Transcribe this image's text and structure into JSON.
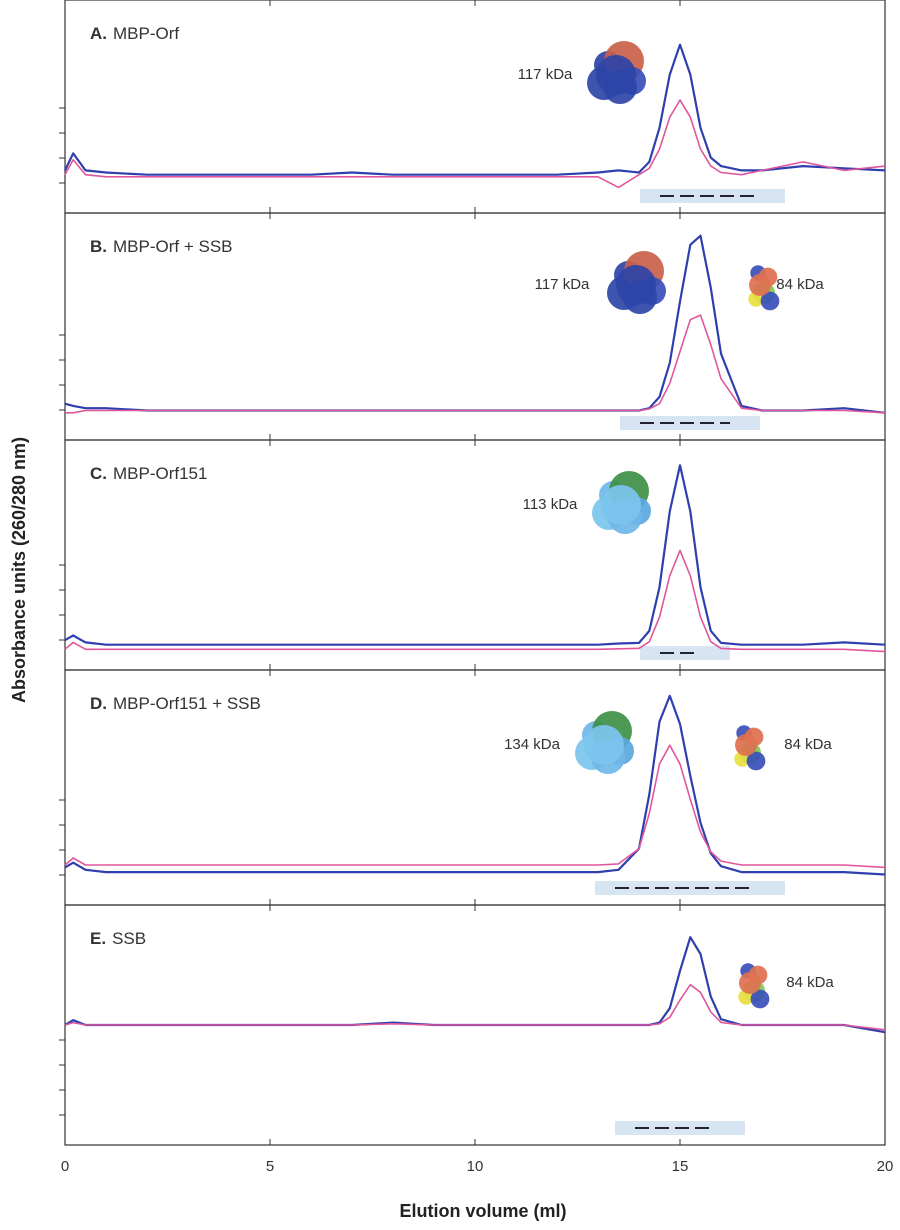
{
  "chart_data": [
    {
      "type": "line",
      "panel_label": "A.",
      "title": "MBP-Orf",
      "annotations": [
        "117 kDa"
      ],
      "x": [
        0,
        0.2,
        0.5,
        1,
        2,
        3,
        4,
        5,
        6,
        7,
        8,
        9,
        10,
        11,
        12,
        13,
        13.5,
        14,
        14.25,
        14.5,
        14.75,
        15,
        15.25,
        15.5,
        15.75,
        16,
        16.5,
        17,
        18,
        19,
        20
      ],
      "xlim": [
        0,
        20
      ],
      "xticks": [
        0,
        5,
        10,
        15,
        20
      ],
      "ylim": [
        0,
        100
      ],
      "series": [
        {
          "color": "#2f3fae",
          "values": [
            20,
            28,
            20,
            19,
            18,
            18,
            18,
            18,
            18,
            19,
            18,
            18,
            18,
            18,
            18,
            19,
            20,
            19,
            24,
            40,
            65,
            79,
            65,
            40,
            26,
            22,
            20,
            20,
            22,
            21,
            20
          ]
        },
        {
          "color": "#e0569c",
          "values": [
            18,
            25,
            18,
            17,
            17,
            17,
            17,
            17,
            17,
            17,
            17,
            17,
            17,
            17,
            17,
            17,
            12,
            18,
            21,
            30,
            45,
            53,
            45,
            30,
            22,
            19,
            18,
            20,
            24,
            20,
            22
          ]
        }
      ]
    },
    {
      "type": "line",
      "panel_label": "B.",
      "title": "MBP-Orf + SSB",
      "annotations": [
        "117 kDa",
        "84 kDa"
      ],
      "ylabel": "Absorbance units (260/280 nm)",
      "x": [
        0,
        0.2,
        0.5,
        1,
        2,
        3,
        4,
        5,
        6,
        7,
        8,
        9,
        10,
        11,
        12,
        13,
        13.5,
        14,
        14.25,
        14.5,
        14.75,
        15,
        15.25,
        15.5,
        15.75,
        16,
        16.5,
        17,
        18,
        19,
        20
      ],
      "xlim": [
        0,
        20
      ],
      "xticks": [
        0,
        5,
        10,
        15,
        20
      ],
      "ylim": [
        0,
        100
      ],
      "series": [
        {
          "color": "#2f3fae",
          "values": [
            16,
            15,
            14,
            14,
            13,
            13,
            13,
            13,
            13,
            13,
            13,
            13,
            13,
            13,
            13,
            13,
            13,
            13,
            14,
            19,
            34,
            61,
            86,
            90,
            67,
            38,
            15,
            13,
            13,
            14,
            12
          ]
        },
        {
          "color": "#e0569c",
          "values": [
            12,
            12,
            13,
            13,
            13,
            13,
            13,
            13,
            13,
            13,
            13,
            13,
            13,
            13,
            13,
            13,
            13,
            13,
            13.7,
            16,
            25,
            39,
            53,
            55,
            42,
            27,
            14,
            13,
            13,
            13,
            12
          ]
        }
      ]
    },
    {
      "type": "line",
      "panel_label": "C.",
      "title": "MBP-Orf151",
      "annotations": [
        "113 kDa"
      ],
      "x": [
        0,
        0.2,
        0.5,
        1,
        2,
        3,
        4,
        5,
        6,
        7,
        8,
        9,
        10,
        11,
        12,
        13,
        13.5,
        14,
        14.25,
        14.5,
        14.75,
        15,
        15.25,
        15.5,
        15.75,
        16,
        16.5,
        17,
        18,
        19,
        20
      ],
      "xlim": [
        0,
        20
      ],
      "xticks": [
        0,
        5,
        10,
        15,
        20
      ],
      "ylim": [
        0,
        100
      ],
      "series": [
        {
          "color": "#2f3fae",
          "values": [
            13,
            15,
            12,
            11,
            11,
            11,
            11,
            11,
            11,
            11,
            11,
            11,
            11,
            11,
            11,
            11,
            11.5,
            11.8,
            17,
            36,
            69,
            89,
            69,
            36,
            17,
            11.8,
            11,
            11,
            11,
            12,
            11
          ]
        },
        {
          "color": "#e0569c",
          "values": [
            9,
            12,
            9,
            9,
            9,
            9,
            9,
            9,
            9,
            9,
            9,
            9,
            9,
            9,
            9,
            9,
            9.2,
            9.4,
            12.3,
            23,
            41,
            52,
            41,
            23,
            12.3,
            9.4,
            9,
            9,
            9,
            9,
            8
          ]
        }
      ]
    },
    {
      "type": "line",
      "panel_label": "D.",
      "title": "MBP-Orf151 + SSB",
      "annotations": [
        "134 kDa",
        "84 kDa"
      ],
      "x": [
        0,
        0.2,
        0.5,
        1,
        2,
        3,
        4,
        5,
        6,
        7,
        8,
        9,
        10,
        11,
        12,
        13,
        13.5,
        14,
        14.25,
        14.5,
        14.75,
        15,
        15.25,
        15.5,
        15.75,
        16,
        16.5,
        17,
        18,
        19,
        20
      ],
      "xlim": [
        0,
        20
      ],
      "xticks": [
        0,
        5,
        10,
        15,
        20
      ],
      "ylim": [
        0,
        100
      ],
      "series": [
        {
          "color": "#2f3fae",
          "values": [
            16,
            18,
            15,
            14,
            14,
            14,
            14,
            14,
            14,
            14,
            14,
            14,
            14,
            14,
            14,
            14,
            15,
            24,
            47,
            78,
            89,
            77,
            55,
            35,
            22,
            16.5,
            14,
            14,
            14,
            14,
            13
          ]
        },
        {
          "color": "#e0569c",
          "values": [
            17,
            20,
            17,
            17,
            17,
            17,
            17,
            17,
            17,
            17,
            17,
            17,
            17,
            17,
            17,
            17,
            17.5,
            24,
            39,
            60,
            68,
            60,
            45,
            31,
            22.6,
            18.7,
            17,
            17,
            17,
            17,
            16
          ]
        }
      ]
    },
    {
      "type": "line",
      "panel_label": "E.",
      "title": "SSB",
      "annotations": [
        "84 kDa"
      ],
      "xlabel": "Elution volume (ml)",
      "x": [
        0,
        0.2,
        0.5,
        1,
        2,
        3,
        4,
        5,
        6,
        7,
        8,
        9,
        10,
        11,
        12,
        13,
        13.5,
        14,
        14.25,
        14.5,
        14.75,
        15,
        15.25,
        15.5,
        15.75,
        16,
        16.5,
        17,
        18,
        19,
        20
      ],
      "xlim": [
        0,
        20
      ],
      "xticks": [
        0,
        5,
        10,
        15,
        20
      ],
      "ylim": [
        0,
        100
      ],
      "series": [
        {
          "color": "#2f3fae",
          "values": [
            50,
            52,
            50,
            50,
            50,
            50,
            50,
            50,
            50,
            50,
            51,
            50,
            50,
            50,
            50,
            50,
            50,
            50,
            50,
            51,
            57,
            72.6,
            86.6,
            79.6,
            61.8,
            52.4,
            50,
            50,
            50,
            50,
            47
          ]
        },
        {
          "color": "#e0569c",
          "values": [
            50,
            51,
            50,
            50,
            50,
            50,
            50,
            50,
            50,
            50,
            50.5,
            50,
            50,
            50,
            50,
            50,
            50,
            50,
            50,
            50.5,
            53.2,
            60.4,
            66.8,
            63.6,
            55.4,
            51.1,
            50,
            50,
            50,
            50,
            48
          ]
        }
      ]
    }
  ]
}
